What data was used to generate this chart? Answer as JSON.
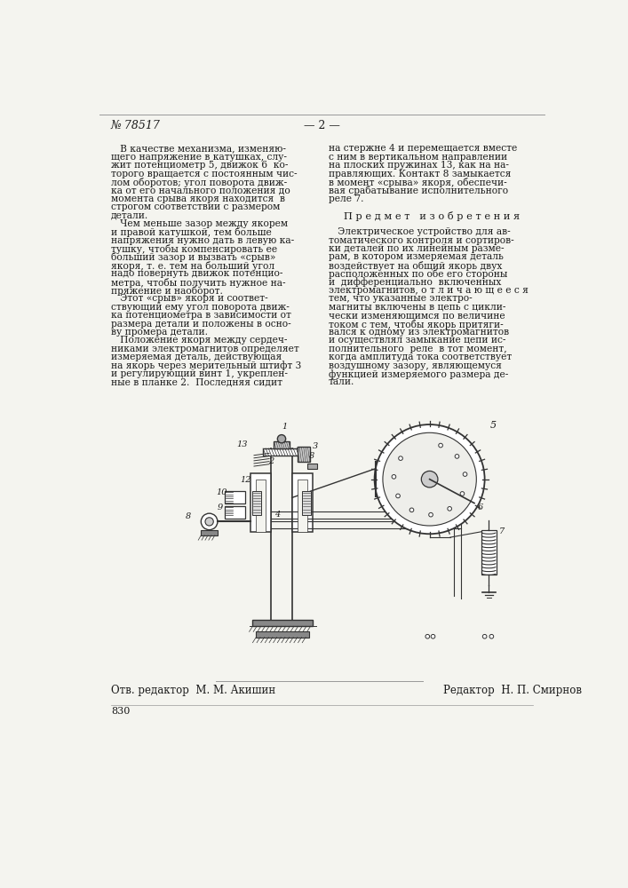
{
  "page_color": "#f4f4ef",
  "text_color": "#1a1a1a",
  "patent_number": "№ 78517",
  "page_number": "— 2 —",
  "footer_left": "Отв. редактор  М. М. Акишин",
  "footer_right": "Редактор  Н. П. Смирнов",
  "footer_number": "830",
  "left_col_lines": [
    "   В качестве механизма, изменяю-",
    "щего напряжение в катушках, слу-",
    "жит потенциометр 5, движок 6  ко-",
    "торого вращается с постоянным чис-",
    "лом оборотов; угол поворота движ-",
    "ка от его начального положения до",
    "момента срыва якоря находится  в",
    "строгом соответствии с размером",
    "детали.",
    "   Чем меньше зазор между якорем",
    "и правой катушкой, тем больше",
    "напряжения нужно дать в левую ка-",
    "тушку, чтобы компенсировать ее",
    "больший зазор и вызвать «срыв»",
    "якоря, т. е. тем на больший угол",
    "надо повернуть движок потенцио-",
    "метра, чтобы получить нужное на-",
    "пряжение и наоборот.",
    "   Этот «срыв» якоря и соответ-",
    "ствующий ему угол поворота движ-",
    "ка потенциометра в зависимости от",
    "размера детали и положены в осно-",
    "ву промера детали.",
    "   Положение якоря между сердеч-",
    "никами электромагнитов определяет",
    "измеряемая деталь, действующая",
    "на якорь через мерительный штифт 3",
    "и регулирующий винт 1, укреплен-",
    "ные в планке 2.  Последняя сидит"
  ],
  "right_col_lines": [
    "на стержне 4 и перемещается вместе",
    "с ним в вертикальном направлении",
    "на плоских пружинах 13, как на на-",
    "правляющих. Контакт 8 замыкается",
    "в момент «срыва» якоря, обеспечи-",
    "вая срабатывание исполнительного",
    "реле 7.",
    "",
    "П р е д м е т   и з о б р е т е н и я",
    "",
    "   Электрическое устройство для ав-",
    "томатического контроля и сортиров-",
    "ки деталей по их линейным разме-",
    "рам, в котором измеряемая деталь",
    "воздействует на общий якорь двух",
    "расположенных по обе его стороны",
    "и  дифференциально  включенных",
    "электромагнитов, о т л и ч а ю щ е е с я",
    "тем, что указанные электро-",
    "магниты включены в цепь с цикли-",
    "чески изменяющимся по величине",
    "током с тем, чтобы якорь притяги-",
    "вался к одному из электромагнитов",
    "и осуществлял замыкание цепи ис-",
    "полнительного  реле  в тот момент,",
    "когда амплитуда тока соответствует",
    "воздушному зазору, являющемуся",
    "функцией измеряемого размера де-",
    "тали."
  ]
}
